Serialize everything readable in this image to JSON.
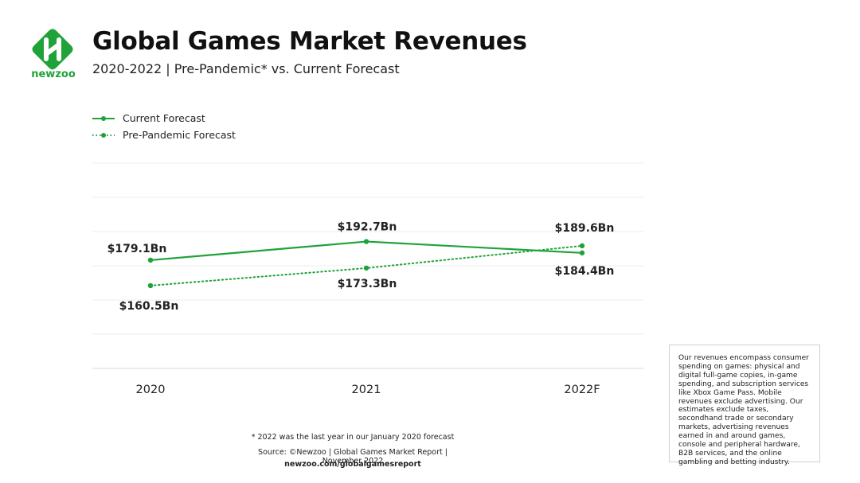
{
  "brand": {
    "name": "newzoo",
    "color": "#1fa339"
  },
  "header": {
    "title": "Global Games Market Revenues",
    "subtitle": "2020-2022 | Pre-Pandemic* vs. Current Forecast"
  },
  "chart_data": {
    "type": "line",
    "categories": [
      "2020",
      "2021",
      "2022F"
    ],
    "series": [
      {
        "name": "Current Forecast",
        "style": "solid",
        "color": "#1fa339",
        "values": [
          179.1,
          192.7,
          184.4
        ],
        "labels": [
          "$179.1Bn",
          "$192.7Bn",
          "$184.4Bn"
        ]
      },
      {
        "name": "Pre-Pandemic Forecast",
        "style": "dotted",
        "color": "#1fa339",
        "values": [
          160.5,
          173.3,
          189.6
        ],
        "labels": [
          "$160.5Bn",
          "$173.3Bn",
          "$189.6Bn"
        ]
      }
    ],
    "ylim": [
      100,
      250
    ],
    "grid": true,
    "legend": "top-left"
  },
  "notes": {
    "box": "Our revenues encompass consumer spending on games: physical and digital full-game copies, in-game spending, and subscription services like Xbox Game Pass. Mobile revenues exclude advertising. Our estimates exclude taxes, secondhand trade or secondary markets, advertising revenues earned in and around games, console and peripheral hardware, B2B services, and the online gambling and betting industry.",
    "footnote": "* 2022 was the last year in our January 2020 forecast",
    "source": "Source: ©Newzoo | Global Games Market Report | November 2022",
    "url": "newzoo.com/globalgamesreport"
  }
}
